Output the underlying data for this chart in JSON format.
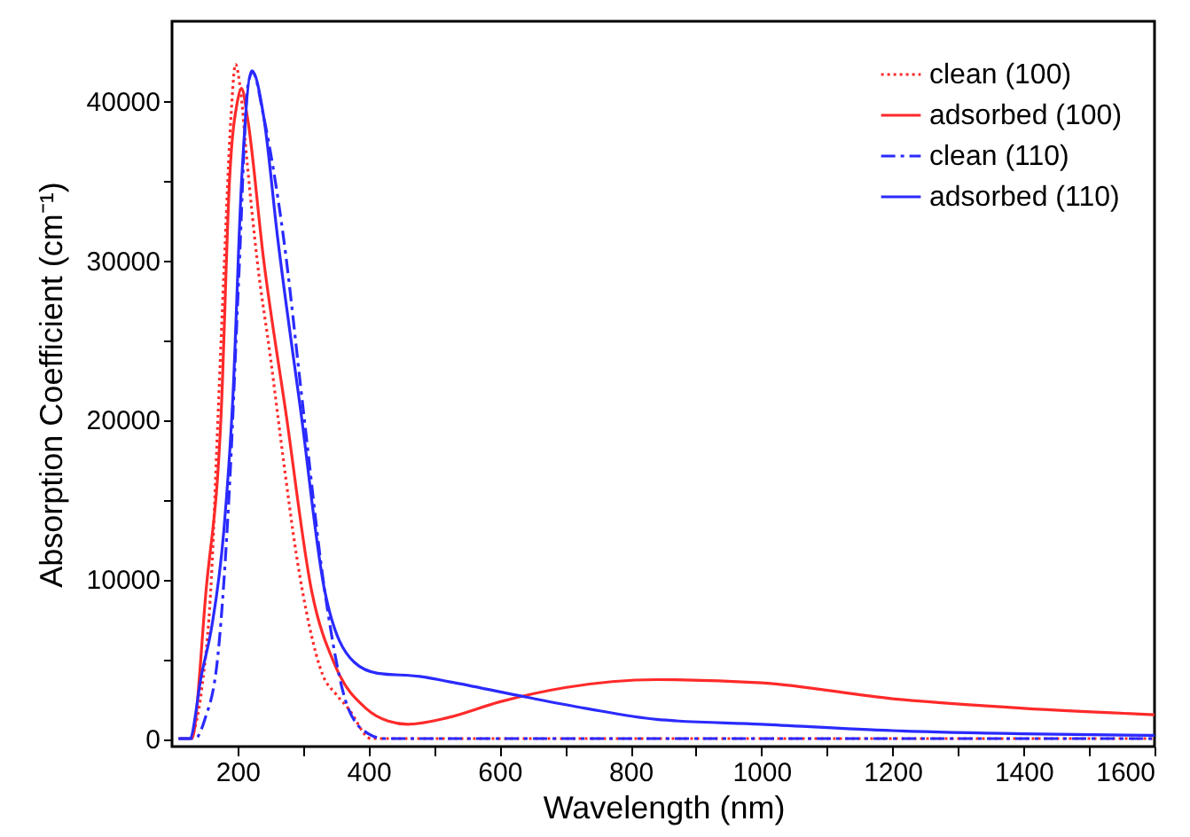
{
  "chart_data": {
    "type": "line",
    "xlabel": "Wavelength (nm)",
    "ylabel": "Absorption Coefficient (cm⁻¹)",
    "xlim": [
      100,
      1600
    ],
    "ylim": [
      -500,
      45000
    ],
    "xticks": [
      200,
      {
        "value": 300,
        "label": null
      },
      400,
      {
        "value": 500,
        "label": null
      },
      600,
      {
        "value": 700,
        "label": null
      },
      800,
      {
        "value": 900,
        "label": null
      },
      1000,
      {
        "value": 1100,
        "label": null
      },
      1200,
      {
        "value": 1300,
        "label": null
      },
      1400,
      {
        "value": 1500,
        "label": null
      },
      1600
    ],
    "yticks": [
      0,
      {
        "value": 5000,
        "label": null
      },
      10000,
      {
        "value": 15000,
        "label": null
      },
      20000,
      {
        "value": 25000,
        "label": null
      },
      30000,
      {
        "value": 35000,
        "label": null
      },
      40000
    ],
    "grid": false,
    "legend": "top right",
    "marker": "none",
    "series": [
      {
        "name": "clean (100)",
        "color": "#ff2a2a",
        "line_style": "dotted",
        "x": [
          130,
          145,
          160,
          170,
          180,
          190,
          197,
          205,
          215,
          230,
          250,
          270,
          290,
          310,
          330,
          350,
          369,
          404,
          420,
          1600
        ],
        "values": [
          0,
          3000,
          10000,
          20000,
          30000,
          39000,
          42300,
          40500,
          36000,
          30000,
          24000,
          17500,
          11500,
          7000,
          4000,
          2800,
          1900,
          0,
          0,
          0
        ]
      },
      {
        "name": "adsorbed (100)",
        "color": "#ff2a2a",
        "line_style": "solid",
        "x": [
          110,
          130,
          152,
          175,
          188,
          200,
          206,
          215,
          240,
          274,
          313,
          350,
          396,
          430,
          460,
          520,
          600,
          700,
          840,
          1000,
          1200,
          1400,
          1600
        ],
        "values": [
          0,
          0,
          9300,
          20400,
          35200,
          40000,
          40800,
          39000,
          30000,
          20400,
          9300,
          4500,
          1900,
          1100,
          900,
          1300,
          2300,
          3200,
          3700,
          3500,
          2500,
          1900,
          1500
        ]
      },
      {
        "name": "clean (110)",
        "color": "#2a2aff",
        "line_style": "dashdot",
        "x": [
          110,
          135,
          150,
          170,
          188,
          202,
          216,
          223,
          240,
          270,
          301,
          333,
          369,
          400,
          424,
          1600
        ],
        "values": [
          0,
          0,
          1200,
          5200,
          16000,
          29000,
          41000,
          41800,
          39000,
          31500,
          20400,
          9300,
          1900,
          300,
          0,
          0
        ]
      },
      {
        "name": "adsorbed (110)",
        "color": "#2a2aff",
        "line_style": "solid",
        "x": [
          110,
          127,
          145,
          161,
          179,
          193,
          206,
          222,
          240,
          261,
          297,
          333,
          378,
          414,
          478,
          532,
          641,
          731,
          840,
          1000,
          1200,
          1400,
          1600
        ],
        "values": [
          0,
          0,
          4000,
          7100,
          13000,
          21500,
          34800,
          41900,
          39000,
          31500,
          20400,
          9300,
          4800,
          4100,
          3900,
          3500,
          2600,
          1900,
          1200,
          900,
          500,
          300,
          200
        ]
      }
    ]
  }
}
